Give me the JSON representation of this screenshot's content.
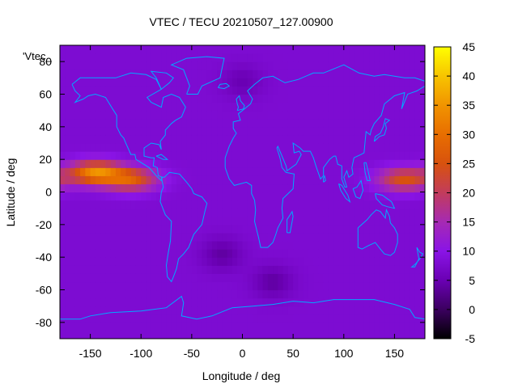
{
  "chart_data": {
    "type": "heatmap",
    "title": "VTEC / TECU 20210507_127.00900",
    "xlabel": "Longitude / deg",
    "ylabel": "Latitude / deg",
    "legend_label": "'Vtec_",
    "xlim": [
      -180,
      180
    ],
    "ylim": [
      -90,
      90
    ],
    "x_ticks": [
      "-150",
      "-100",
      "-50",
      "0",
      "50",
      "100",
      "150"
    ],
    "y_ticks": [
      "-80",
      "-60",
      "-40",
      "-20",
      "0",
      "20",
      "40",
      "60",
      "80"
    ],
    "colorbar": {
      "range": [
        -5,
        45
      ],
      "ticks": [
        "-5",
        "0",
        "5",
        "10",
        "15",
        "20",
        "25",
        "30",
        "35",
        "40",
        "45"
      ],
      "colors": [
        "#000000",
        "#3b005f",
        "#6a00b3",
        "#8a14e6",
        "#a62ab3",
        "#c23c5c",
        "#d8520e",
        "#e86e00",
        "#f19400",
        "#f7c400",
        "#ffff00"
      ]
    },
    "grid": false,
    "background_value": 8,
    "features": [
      {
        "name": "equatorial-anomaly-pacific",
        "lon": -145,
        "lat": 12,
        "value": 33
      },
      {
        "name": "equatorial-anomaly-central-pacific",
        "lon": -110,
        "lat": 8,
        "value": 26
      },
      {
        "name": "equatorial-anomaly-west-pacific",
        "lon": 160,
        "lat": 8,
        "value": 25
      },
      {
        "name": "south-atlantic-low",
        "lon": -20,
        "lat": -38,
        "value": 4
      },
      {
        "name": "southern-ocean-low",
        "lon": 30,
        "lat": -55,
        "value": 4
      },
      {
        "name": "north-pole-low",
        "lon": 0,
        "lat": 68,
        "value": 5
      }
    ],
    "coastline_color": "#00aaff"
  }
}
